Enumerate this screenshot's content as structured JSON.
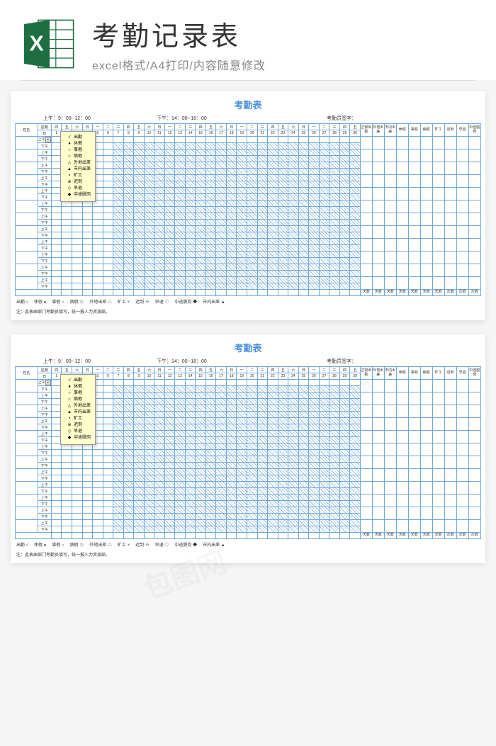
{
  "header": {
    "title": "考勤记录表",
    "subtitle": "excel格式/A4打印/内容随意修改",
    "icon_letter": "X",
    "icon_bg": "#1d6f42",
    "icon_page": "#ffffff"
  },
  "sheet": {
    "title": "考勤表",
    "morning_time": "上午：9：00--12：00",
    "afternoon_time": "下午：14：00--18：00",
    "sign_label": "考勤员签字：",
    "name_header": "姓名",
    "weekday_header": "星期",
    "date_header": "日",
    "period_am": "上午",
    "period_pm": "下午",
    "weekdays": [
      "四",
      "五",
      "六",
      "日",
      "一",
      "二",
      "三",
      "四",
      "五",
      "六",
      "日",
      "一",
      "二",
      "三",
      "四",
      "五",
      "六",
      "日",
      "一",
      "二",
      "三",
      "四",
      "五",
      "六",
      "日",
      "一",
      "二",
      "三",
      "四",
      "五"
    ],
    "dates": [
      "1",
      "2",
      "3",
      "4",
      "5",
      "6",
      "7",
      "8",
      "9",
      "10",
      "11",
      "12",
      "13",
      "14",
      "15",
      "16",
      "17",
      "18",
      "19",
      "20",
      "21",
      "22",
      "23",
      "24",
      "25",
      "26",
      "27",
      "28",
      "29",
      "30"
    ],
    "summary_headers": [
      "正常出勤",
      "外地出差",
      "市内出差",
      "休假",
      "事假",
      "病假",
      "旷工",
      "迟到",
      "早退",
      "中途脱岗"
    ],
    "summary_sub": [
      "天数",
      "天数",
      "天数",
      "天数",
      "天数",
      "天数",
      "天数",
      "次数",
      "次数",
      "次数"
    ],
    "num_employees": 12,
    "hatched_start_col": 6
  },
  "legend": {
    "items": [
      {
        "sym": "√",
        "label": "出勤"
      },
      {
        "sym": "●",
        "label": "休假"
      },
      {
        "sym": "○",
        "label": "事假"
      },
      {
        "sym": "☆",
        "label": "病假"
      },
      {
        "sym": "△",
        "label": "外地出差"
      },
      {
        "sym": "▲",
        "label": "市内出差"
      },
      {
        "sym": "×",
        "label": "旷工"
      },
      {
        "sym": "※",
        "label": "迟到"
      },
      {
        "sym": "◇",
        "label": "早退"
      },
      {
        "sym": "◆",
        "label": "中途脱岗"
      }
    ],
    "bottom_line": [
      {
        "sym": "√",
        "label": "出勤"
      },
      {
        "sym": "●",
        "label": "休假"
      },
      {
        "sym": "○",
        "label": "事假"
      },
      {
        "sym": "☆",
        "label": "病假"
      },
      {
        "sym": "△",
        "label": "外地出差"
      },
      {
        "sym": "×",
        "label": "旷工"
      },
      {
        "sym": "※",
        "label": "迟到"
      },
      {
        "sym": "◇",
        "label": "早退"
      },
      {
        "sym": "◆",
        "label": "中途脱岗"
      },
      {
        "sym": "▲",
        "label": "市内出差"
      }
    ],
    "note": "注：此表由部门考勤员填写，统一报人力资源部。"
  },
  "colors": {
    "grid": "#6fa8dc",
    "title": "#4a90d9",
    "legend_bg": "#ffffcc"
  },
  "watermarks": [
    "包图网",
    "ibaotu.com"
  ]
}
